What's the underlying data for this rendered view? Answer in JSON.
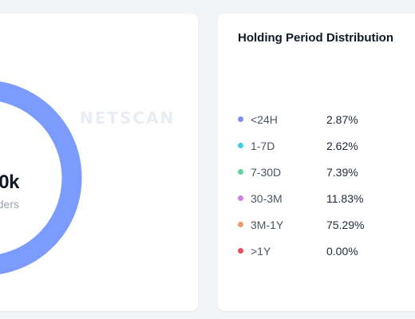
{
  "summary_card": {
    "total_value": "0k",
    "total_label": "ders",
    "watermark": "NETSCAN",
    "ring_color": "#7b9bff"
  },
  "distribution_card": {
    "title": "Holding Period Distribution",
    "items": [
      {
        "range": "<24H",
        "percent": "2.87%",
        "color": "#7b8ff0"
      },
      {
        "range": "1-7D",
        "percent": "2.62%",
        "color": "#3ccfe6"
      },
      {
        "range": "7-30D",
        "percent": "7.39%",
        "color": "#5dd39e"
      },
      {
        "range": "30-3M",
        "percent": "11.83%",
        "color": "#d47be8"
      },
      {
        "range": "3M-1Y",
        "percent": "75.29%",
        "color": "#f2966b"
      },
      {
        "range": ">1Y",
        "percent": "0.00%",
        "color": "#e84d5b"
      }
    ]
  }
}
